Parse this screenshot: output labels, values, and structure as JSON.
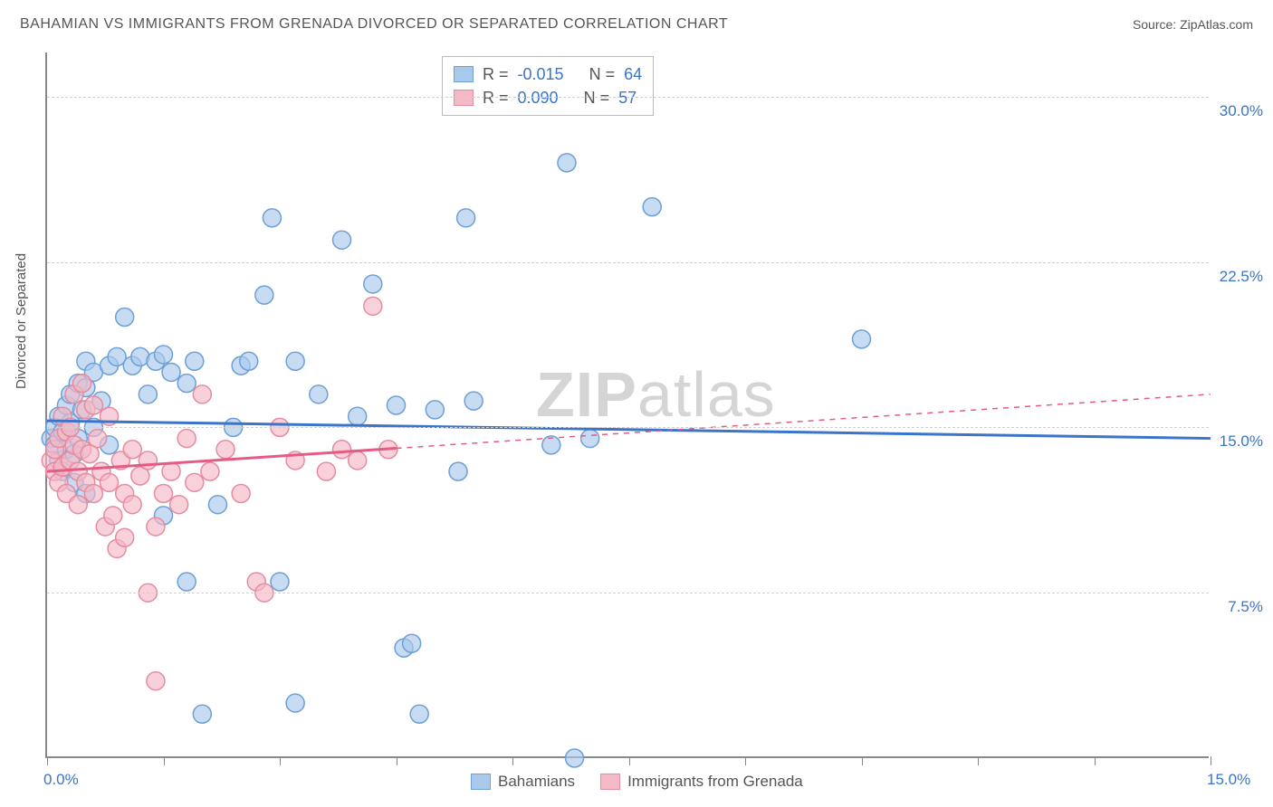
{
  "title": "BAHAMIAN VS IMMIGRANTS FROM GRENADA DIVORCED OR SEPARATED CORRELATION CHART",
  "source_label": "Source: ZipAtlas.com",
  "ylabel": "Divorced or Separated",
  "watermark_1": "ZIP",
  "watermark_2": "atlas",
  "chart": {
    "type": "scatter",
    "xlim": [
      0,
      15
    ],
    "ylim": [
      0,
      32
    ],
    "x_tick_labels": {
      "0": "0.0%",
      "15": "15.0%"
    },
    "x_tick_positions": [
      0,
      1.5,
      3,
      4.5,
      6,
      7.5,
      9,
      10.5,
      12,
      13.5,
      15
    ],
    "y_gridlines": [
      7.5,
      15,
      22.5,
      30
    ],
    "y_tick_labels": {
      "7.5": "7.5%",
      "15": "15.0%",
      "22.5": "22.5%",
      "30": "30.0%"
    },
    "background_color": "#ffffff",
    "grid_color": "#d0d0d0",
    "axis_color": "#888888",
    "marker_radius": 10,
    "marker_stroke_width": 1.5,
    "series": [
      {
        "name": "Bahamians",
        "fill": "#a9c9ec",
        "stroke": "#6e9fd6",
        "fill_opacity": 0.65,
        "R": "-0.015",
        "N": "64",
        "trend": {
          "y_start": 15.3,
          "y_end": 14.5,
          "solid_end_x": 15,
          "color": "#3b74c9",
          "width": 3
        },
        "points": [
          [
            0.05,
            14.5
          ],
          [
            0.1,
            15.0
          ],
          [
            0.1,
            14.2
          ],
          [
            0.15,
            13.5
          ],
          [
            0.15,
            15.5
          ],
          [
            0.2,
            14.8
          ],
          [
            0.2,
            13.0
          ],
          [
            0.25,
            16.0
          ],
          [
            0.25,
            14.0
          ],
          [
            0.3,
            15.2
          ],
          [
            0.3,
            16.5
          ],
          [
            0.35,
            13.8
          ],
          [
            0.4,
            17.0
          ],
          [
            0.4,
            14.5
          ],
          [
            0.45,
            15.8
          ],
          [
            0.5,
            18.0
          ],
          [
            0.5,
            16.8
          ],
          [
            0.6,
            17.5
          ],
          [
            0.6,
            15.0
          ],
          [
            0.7,
            16.2
          ],
          [
            0.8,
            17.8
          ],
          [
            0.8,
            14.2
          ],
          [
            0.9,
            18.2
          ],
          [
            1.0,
            20.0
          ],
          [
            1.1,
            17.8
          ],
          [
            1.2,
            18.2
          ],
          [
            1.3,
            16.5
          ],
          [
            1.4,
            18.0
          ],
          [
            1.5,
            18.3
          ],
          [
            1.5,
            11.0
          ],
          [
            1.6,
            17.5
          ],
          [
            1.8,
            17.0
          ],
          [
            1.8,
            8.0
          ],
          [
            1.9,
            18.0
          ],
          [
            2.0,
            2.0
          ],
          [
            2.2,
            11.5
          ],
          [
            2.4,
            15.0
          ],
          [
            2.5,
            17.8
          ],
          [
            2.6,
            18.0
          ],
          [
            2.8,
            21.0
          ],
          [
            2.9,
            24.5
          ],
          [
            3.0,
            8.0
          ],
          [
            3.2,
            18.0
          ],
          [
            3.2,
            2.5
          ],
          [
            3.5,
            16.5
          ],
          [
            3.8,
            23.5
          ],
          [
            4.0,
            15.5
          ],
          [
            4.2,
            21.5
          ],
          [
            4.5,
            16.0
          ],
          [
            4.6,
            5.0
          ],
          [
            4.7,
            5.2
          ],
          [
            4.8,
            2.0
          ],
          [
            5.0,
            15.8
          ],
          [
            5.3,
            13.0
          ],
          [
            5.4,
            24.5
          ],
          [
            5.5,
            16.2
          ],
          [
            6.5,
            14.2
          ],
          [
            6.7,
            27.0
          ],
          [
            6.8,
            0.0
          ],
          [
            7.0,
            14.5
          ],
          [
            7.8,
            25.0
          ],
          [
            10.5,
            19.0
          ],
          [
            0.35,
            12.5
          ],
          [
            0.5,
            12.0
          ]
        ]
      },
      {
        "name": "Immigrants from Grenada",
        "fill": "#f4b9c6",
        "stroke": "#e68ba0",
        "fill_opacity": 0.65,
        "R": "0.090",
        "N": "57",
        "trend": {
          "y_start": 13.0,
          "y_end": 16.5,
          "solid_end_x": 4.5,
          "color": "#e55b84",
          "width": 3
        },
        "points": [
          [
            0.05,
            13.5
          ],
          [
            0.1,
            14.0
          ],
          [
            0.1,
            13.0
          ],
          [
            0.15,
            14.5
          ],
          [
            0.15,
            12.5
          ],
          [
            0.2,
            15.5
          ],
          [
            0.2,
            13.2
          ],
          [
            0.25,
            14.8
          ],
          [
            0.25,
            12.0
          ],
          [
            0.3,
            13.5
          ],
          [
            0.3,
            15.0
          ],
          [
            0.35,
            14.2
          ],
          [
            0.35,
            16.5
          ],
          [
            0.4,
            13.0
          ],
          [
            0.4,
            11.5
          ],
          [
            0.45,
            14.0
          ],
          [
            0.45,
            17.0
          ],
          [
            0.5,
            12.5
          ],
          [
            0.5,
            15.8
          ],
          [
            0.55,
            13.8
          ],
          [
            0.6,
            12.0
          ],
          [
            0.6,
            16.0
          ],
          [
            0.65,
            14.5
          ],
          [
            0.7,
            13.0
          ],
          [
            0.75,
            10.5
          ],
          [
            0.8,
            12.5
          ],
          [
            0.8,
            15.5
          ],
          [
            0.85,
            11.0
          ],
          [
            0.9,
            9.5
          ],
          [
            0.95,
            13.5
          ],
          [
            1.0,
            12.0
          ],
          [
            1.0,
            10.0
          ],
          [
            1.1,
            14.0
          ],
          [
            1.1,
            11.5
          ],
          [
            1.2,
            12.8
          ],
          [
            1.3,
            7.5
          ],
          [
            1.3,
            13.5
          ],
          [
            1.4,
            10.5
          ],
          [
            1.4,
            3.5
          ],
          [
            1.5,
            12.0
          ],
          [
            1.6,
            13.0
          ],
          [
            1.7,
            11.5
          ],
          [
            1.8,
            14.5
          ],
          [
            1.9,
            12.5
          ],
          [
            2.0,
            16.5
          ],
          [
            2.1,
            13.0
          ],
          [
            2.3,
            14.0
          ],
          [
            2.5,
            12.0
          ],
          [
            2.7,
            8.0
          ],
          [
            2.8,
            7.5
          ],
          [
            3.0,
            15.0
          ],
          [
            3.2,
            13.5
          ],
          [
            3.6,
            13.0
          ],
          [
            3.8,
            14.0
          ],
          [
            4.0,
            13.5
          ],
          [
            4.2,
            20.5
          ],
          [
            4.4,
            14.0
          ]
        ]
      }
    ]
  },
  "stats_legend": {
    "r_label": "R =",
    "n_label": "N ="
  },
  "bottom_legend": [
    {
      "label": "Bahamians",
      "fill": "#a9c9ec",
      "stroke": "#6e9fd6"
    },
    {
      "label": "Immigrants from Grenada",
      "fill": "#f4b9c6",
      "stroke": "#e68ba0"
    }
  ]
}
